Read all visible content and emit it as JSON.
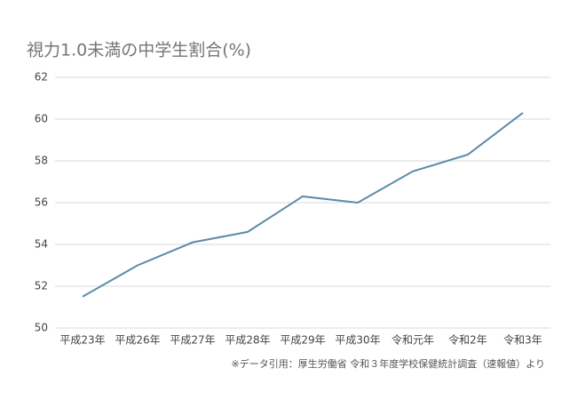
{
  "chart_data": {
    "type": "line",
    "title": "視力1.0未満の中学生割合(%)",
    "note": "※データ引用：厚生労働省 令和３年度学校保健統計調査（速報値）より",
    "categories": [
      "平成23年",
      "平成26年",
      "平成27年",
      "平成28年",
      "平成29年",
      "平成30年",
      "令和元年",
      "令和2年",
      "令和3年"
    ],
    "values": [
      51.5,
      53.0,
      54.1,
      54.6,
      56.3,
      56.0,
      57.5,
      58.3,
      60.3
    ],
    "color": "#5b8ba8",
    "ylim": [
      50,
      62
    ],
    "yticks": [
      50,
      52,
      54,
      56,
      58,
      60,
      62
    ],
    "grid": true
  }
}
